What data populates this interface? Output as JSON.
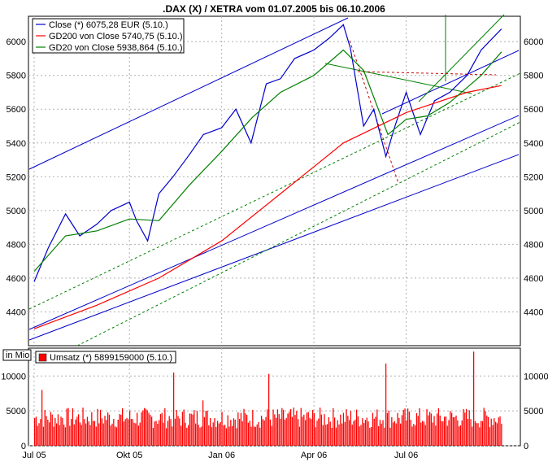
{
  "title": ".DAX (X) / XETRA vom 01.07.2005 bis 06.10.2006",
  "chart_data": [
    {
      "type": "line",
      "grid": true,
      "ylim": [
        4200,
        6150
      ],
      "yticks": [
        4400,
        4600,
        4800,
        5000,
        5200,
        5400,
        5600,
        5800,
        6000
      ],
      "legend_position": "top-left",
      "series": [
        {
          "name": "Close (*) 6075,28 EUR (5.10.)",
          "color": "#0000cc",
          "x": [
            "2005-07-01",
            "2005-07-15",
            "2005-08-01",
            "2005-08-15",
            "2005-09-01",
            "2005-09-15",
            "2005-10-03",
            "2005-10-10",
            "2005-10-21",
            "2005-11-01",
            "2005-11-15",
            "2005-12-01",
            "2005-12-15",
            "2006-01-02",
            "2006-01-16",
            "2006-01-31",
            "2006-02-15",
            "2006-03-01",
            "2006-03-15",
            "2006-04-03",
            "2006-04-18",
            "2006-05-02",
            "2006-05-09",
            "2006-05-22",
            "2006-06-01",
            "2006-06-13",
            "2006-06-22",
            "2006-07-03",
            "2006-07-17",
            "2006-07-31",
            "2006-08-15",
            "2006-09-01",
            "2006-09-15",
            "2006-10-05"
          ],
          "values": [
            4580,
            4780,
            4980,
            4850,
            4920,
            5000,
            5050,
            4940,
            4820,
            5100,
            5200,
            5330,
            5450,
            5490,
            5600,
            5400,
            5750,
            5780,
            5900,
            5950,
            6020,
            6100,
            5960,
            5500,
            5600,
            5320,
            5500,
            5700,
            5450,
            5650,
            5700,
            5800,
            5950,
            6075
          ]
        },
        {
          "name": "GD200 von Close 5740,75 (5.10.)",
          "color": "#ff0000",
          "x": [
            "2005-07-01",
            "2005-09-01",
            "2005-11-01",
            "2006-01-02",
            "2006-03-01",
            "2006-05-02",
            "2006-07-03",
            "2006-09-01",
            "2006-10-05"
          ],
          "values": [
            4300,
            4440,
            4600,
            4820,
            5100,
            5400,
            5580,
            5700,
            5740
          ]
        },
        {
          "name": "GD20 von Close 5938,864 (5.10.)",
          "color": "#008000",
          "x": [
            "2005-07-01",
            "2005-08-01",
            "2005-09-01",
            "2005-10-03",
            "2005-11-01",
            "2005-12-01",
            "2006-01-02",
            "2006-02-01",
            "2006-03-01",
            "2006-04-03",
            "2006-05-02",
            "2006-05-22",
            "2006-06-15",
            "2006-07-03",
            "2006-07-24",
            "2006-08-15",
            "2006-09-15",
            "2006-10-05"
          ],
          "values": [
            4640,
            4850,
            4880,
            4950,
            4940,
            5150,
            5350,
            5550,
            5700,
            5800,
            5950,
            5830,
            5450,
            5540,
            5560,
            5640,
            5800,
            5939
          ]
        }
      ]
    },
    {
      "type": "bar",
      "ylabel": "in Mio",
      "yticks": [
        0,
        5000,
        10000
      ],
      "ylim": [
        0,
        14000
      ],
      "legend_position": "top-left",
      "series": [
        {
          "name": "Umsatz (*) 5899159000 (5.10.)",
          "color": "#ff0000",
          "count": 320,
          "baseline_range": [
            2500,
            5500
          ],
          "spikes": [
            {
              "index": 5,
              "value": 8000
            },
            {
              "index": 95,
              "value": 10500
            },
            {
              "index": 115,
              "value": 6500
            },
            {
              "index": 160,
              "value": 10300
            },
            {
              "index": 240,
              "value": 11800
            },
            {
              "index": 300,
              "value": 13500
            }
          ]
        }
      ]
    }
  ],
  "x_axis": {
    "ticks": [
      {
        "date": "2005-07-01",
        "label": "Jul 05"
      },
      {
        "date": "2005-10-03",
        "label": "Okt 05"
      },
      {
        "date": "2006-01-02",
        "label": "Jan 06"
      },
      {
        "date": "2006-04-03",
        "label": "Apr 06"
      },
      {
        "date": "2006-07-03",
        "label": "Jul 06"
      }
    ],
    "range": [
      "2005-07-01",
      "2006-10-06"
    ]
  }
}
